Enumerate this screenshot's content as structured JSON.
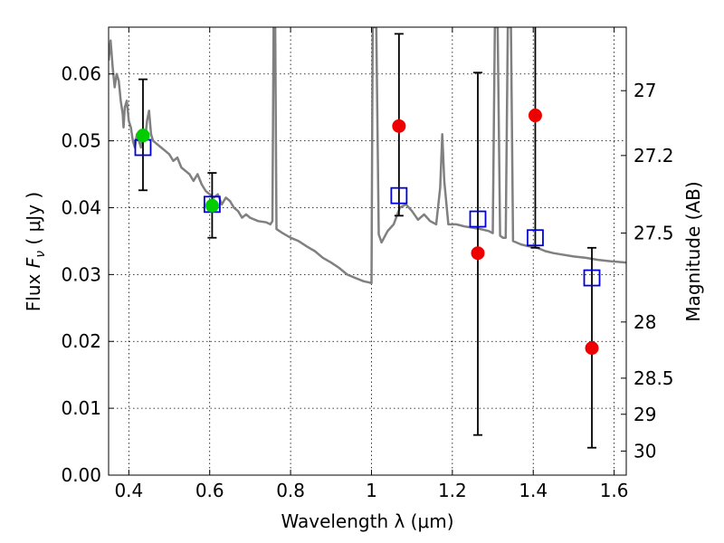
{
  "chart_data": {
    "type": "scatter",
    "xlabel": "Wavelength  λ (μm)",
    "ylabel_left": "Flux  F_ν  ( μJy )",
    "ylabel_right": "Magnitude (AB)",
    "xlim": [
      0.35,
      1.63
    ],
    "ylim": [
      0.0,
      0.067
    ],
    "grid": true,
    "x_ticks": [
      0.4,
      0.6,
      0.8,
      1.0,
      1.2,
      1.4,
      1.6
    ],
    "x_tick_labels": [
      "0.4",
      "0.6",
      "0.8",
      "1",
      "1.2",
      "1.4",
      "1.6"
    ],
    "y_ticks": [
      0.0,
      0.01,
      0.02,
      0.03,
      0.04,
      0.05,
      0.06
    ],
    "y_tick_labels": [
      "0.00",
      "0.01",
      "0.02",
      "0.03",
      "0.04",
      "0.05",
      "0.06"
    ],
    "right_axis_ticks": [
      {
        "label": "27",
        "flux": 0.0575
      },
      {
        "label": "27.2",
        "flux": 0.0478
      },
      {
        "label": "27.5",
        "flux": 0.0362
      },
      {
        "label": "28",
        "flux": 0.0229
      },
      {
        "label": "28.5",
        "flux": 0.0145
      },
      {
        "label": "29",
        "flux": 0.0091
      },
      {
        "label": "30",
        "flux": 0.0036
      }
    ],
    "sed_model": {
      "color": "#808080",
      "points": [
        [
          0.35,
          0.062
        ],
        [
          0.355,
          0.065
        ],
        [
          0.36,
          0.061
        ],
        [
          0.365,
          0.058
        ],
        [
          0.37,
          0.06
        ],
        [
          0.375,
          0.059
        ],
        [
          0.38,
          0.056
        ],
        [
          0.385,
          0.054
        ],
        [
          0.387,
          0.052
        ],
        [
          0.39,
          0.055
        ],
        [
          0.395,
          0.056
        ],
        [
          0.4,
          0.053
        ],
        [
          0.405,
          0.052
        ],
        [
          0.41,
          0.05
        ],
        [
          0.415,
          0.049
        ],
        [
          0.42,
          0.051
        ],
        [
          0.425,
          0.05
        ],
        [
          0.43,
          0.049
        ],
        [
          0.435,
          0.051
        ],
        [
          0.44,
          0.05
        ],
        [
          0.445,
          0.053
        ],
        [
          0.45,
          0.0545
        ],
        [
          0.455,
          0.051
        ],
        [
          0.46,
          0.05
        ],
        [
          0.47,
          0.0495
        ],
        [
          0.48,
          0.049
        ],
        [
          0.49,
          0.0485
        ],
        [
          0.5,
          0.048
        ],
        [
          0.51,
          0.047
        ],
        [
          0.52,
          0.0475
        ],
        [
          0.53,
          0.046
        ],
        [
          0.54,
          0.0455
        ],
        [
          0.55,
          0.045
        ],
        [
          0.56,
          0.044
        ],
        [
          0.57,
          0.045
        ],
        [
          0.58,
          0.0435
        ],
        [
          0.59,
          0.0425
        ],
        [
          0.6,
          0.042
        ],
        [
          0.61,
          0.0415
        ],
        [
          0.62,
          0.042
        ],
        [
          0.63,
          0.0405
        ],
        [
          0.64,
          0.0415
        ],
        [
          0.65,
          0.041
        ],
        [
          0.66,
          0.04
        ],
        [
          0.67,
          0.0395
        ],
        [
          0.68,
          0.0385
        ],
        [
          0.69,
          0.039
        ],
        [
          0.7,
          0.0385
        ],
        [
          0.72,
          0.038
        ],
        [
          0.74,
          0.0378
        ],
        [
          0.75,
          0.0375
        ],
        [
          0.755,
          0.038
        ],
        [
          0.758,
          0.067
        ],
        [
          0.762,
          0.067
        ],
        [
          0.765,
          0.0368
        ],
        [
          0.78,
          0.0362
        ],
        [
          0.8,
          0.0355
        ],
        [
          0.82,
          0.035
        ],
        [
          0.84,
          0.0342
        ],
        [
          0.86,
          0.0335
        ],
        [
          0.88,
          0.0325
        ],
        [
          0.9,
          0.0318
        ],
        [
          0.92,
          0.031
        ],
        [
          0.94,
          0.03
        ],
        [
          0.96,
          0.0295
        ],
        [
          0.98,
          0.029
        ],
        [
          0.995,
          0.0288
        ],
        [
          1.0,
          0.0287
        ],
        [
          1.003,
          0.067
        ],
        [
          1.012,
          0.067
        ],
        [
          1.018,
          0.036
        ],
        [
          1.025,
          0.0348
        ],
        [
          1.04,
          0.0365
        ],
        [
          1.055,
          0.0375
        ],
        [
          1.07,
          0.04
        ],
        [
          1.085,
          0.0405
        ],
        [
          1.1,
          0.0395
        ],
        [
          1.115,
          0.0382
        ],
        [
          1.13,
          0.039
        ],
        [
          1.145,
          0.038
        ],
        [
          1.16,
          0.0375
        ],
        [
          1.17,
          0.043
        ],
        [
          1.175,
          0.051
        ],
        [
          1.18,
          0.044
        ],
        [
          1.19,
          0.0375
        ],
        [
          1.21,
          0.0375
        ],
        [
          1.23,
          0.0372
        ],
        [
          1.25,
          0.037
        ],
        [
          1.27,
          0.0368
        ],
        [
          1.29,
          0.0365
        ],
        [
          1.3,
          0.0362
        ],
        [
          1.305,
          0.067
        ],
        [
          1.312,
          0.067
        ],
        [
          1.318,
          0.0358
        ],
        [
          1.325,
          0.0355
        ],
        [
          1.332,
          0.0355
        ],
        [
          1.337,
          0.067
        ],
        [
          1.345,
          0.067
        ],
        [
          1.35,
          0.035
        ],
        [
          1.37,
          0.0345
        ],
        [
          1.39,
          0.0342
        ],
        [
          1.41,
          0.034
        ],
        [
          1.43,
          0.0335
        ],
        [
          1.45,
          0.0332
        ],
        [
          1.47,
          0.033
        ],
        [
          1.5,
          0.0327
        ],
        [
          1.53,
          0.0325
        ],
        [
          1.56,
          0.0322
        ],
        [
          1.59,
          0.032
        ],
        [
          1.63,
          0.0318
        ]
      ]
    },
    "model_bandpass": {
      "color": "#0000dd",
      "marker": "open-square",
      "points": [
        {
          "x": 0.435,
          "y": 0.049
        },
        {
          "x": 0.606,
          "y": 0.0405
        },
        {
          "x": 1.068,
          "y": 0.0418
        },
        {
          "x": 1.263,
          "y": 0.0383
        },
        {
          "x": 1.405,
          "y": 0.0355
        },
        {
          "x": 1.545,
          "y": 0.0295
        }
      ]
    },
    "detections": {
      "color": "#00cc00",
      "marker": "filled-circle",
      "points": [
        {
          "x": 0.435,
          "y": 0.0508,
          "ylow": 0.0426,
          "yhigh": 0.0592
        },
        {
          "x": 0.606,
          "y": 0.0403,
          "ylow": 0.0355,
          "yhigh": 0.0452
        }
      ]
    },
    "non_detections": {
      "color": "#ee0000",
      "marker": "filled-circle",
      "points": [
        {
          "x": 1.068,
          "y": 0.0522,
          "ylow": 0.0388,
          "yhigh": 0.066
        },
        {
          "x": 1.263,
          "y": 0.0332,
          "ylow": 0.006,
          "yhigh": 0.0602
        },
        {
          "x": 1.405,
          "y": 0.0538,
          "ylow": 0.034,
          "yhigh": 0.067
        },
        {
          "x": 1.545,
          "y": 0.019,
          "ylow": 0.0041,
          "yhigh": 0.034
        }
      ]
    }
  }
}
